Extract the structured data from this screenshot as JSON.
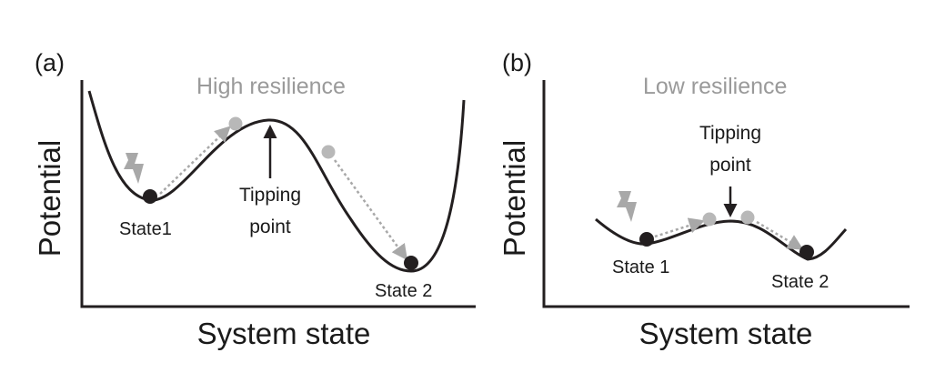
{
  "panel_a": {
    "tag": "(a)",
    "title": "High resilience",
    "x_label": "System state",
    "y_label": "Potential",
    "state1": "State1",
    "state2": "State 2",
    "tipping_line1": "Tipping",
    "tipping_line2": "point"
  },
  "panel_b": {
    "tag": "(b)",
    "title": "Low resilience",
    "x_label": "System state",
    "y_label": "Potential",
    "state1": "State 1",
    "state2": "State 2",
    "tipping_line1": "Tipping",
    "tipping_line2": "point"
  },
  "colors": {
    "curve": "#231f20",
    "ball_dark": "#231f20",
    "ball_gray": "#b8b8b8",
    "arrow_gray": "#a8a8a8",
    "title_gray": "#9a9a9a"
  }
}
